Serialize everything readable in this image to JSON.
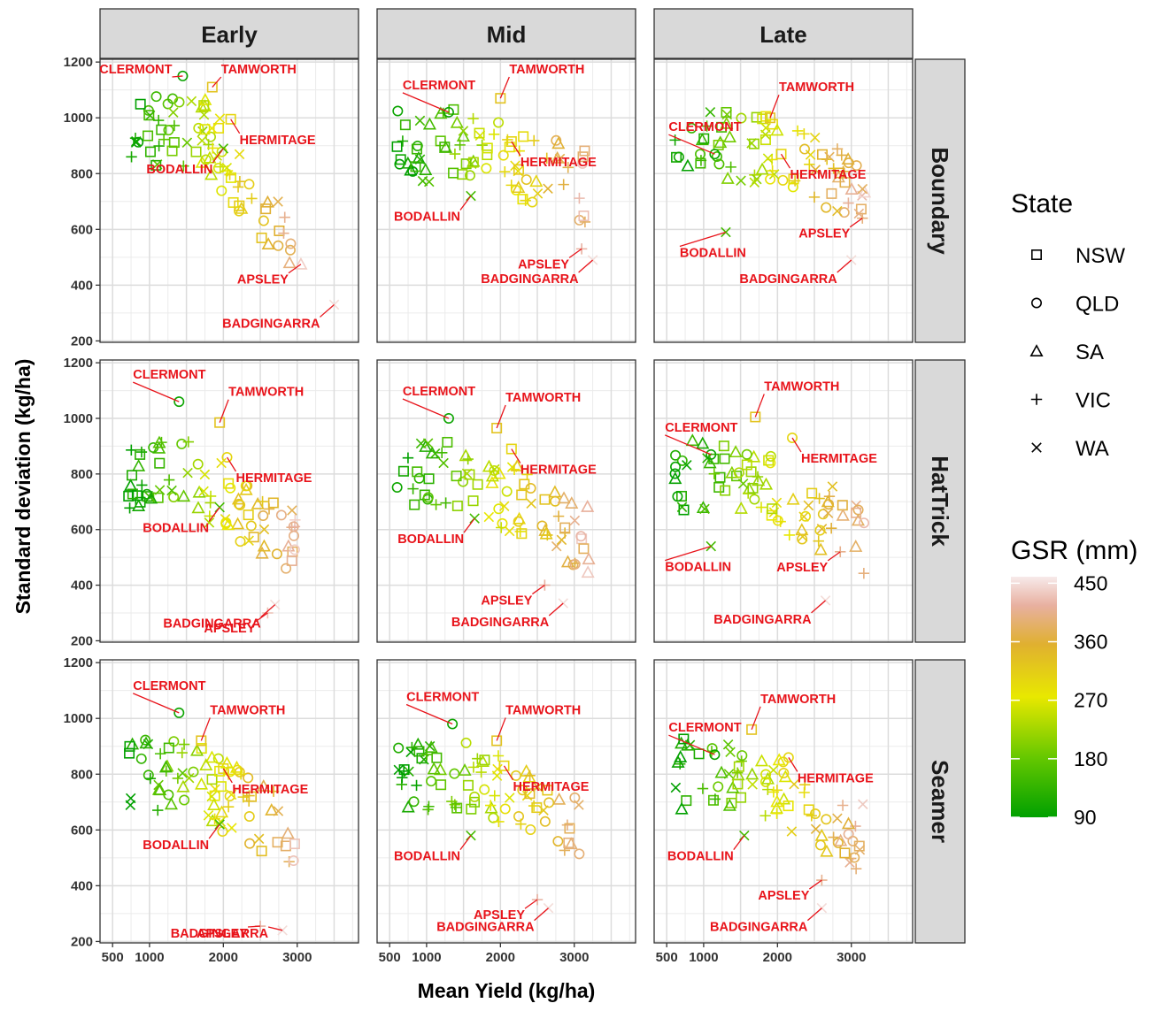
{
  "chart_data": {
    "type": "scatter",
    "xlabel": "Mean Yield (kg/ha)",
    "ylabel": "Standard deviation (kg/ha)",
    "xlim": [
      330,
      3830
    ],
    "ylim": [
      195,
      1210
    ],
    "x_ticks": [
      500,
      1000,
      2000,
      3000
    ],
    "y_ticks": [
      200,
      400,
      600,
      800,
      1000,
      1200
    ],
    "grid": true,
    "columns": [
      "Early",
      "Mid",
      "Late"
    ],
    "rows": [
      "Boundary",
      "HatTrick",
      "Seamer"
    ],
    "legend": {
      "shape_title": "State",
      "states": [
        {
          "name": "NSW",
          "shape": "square"
        },
        {
          "name": "QLD",
          "shape": "circle"
        },
        {
          "name": "SA",
          "shape": "triangle"
        },
        {
          "name": "VIC",
          "shape": "plus"
        },
        {
          "name": "WA",
          "shape": "cross"
        }
      ],
      "color_title": "GSR (mm)",
      "color_ticks": [
        450,
        360,
        270,
        180,
        90
      ],
      "color_range": [
        90,
        460
      ],
      "colors": [
        "#00a000",
        "#66c800",
        "#e8e800",
        "#e0b030",
        "#e8b0a0",
        "#f7eaea"
      ]
    },
    "panels": [
      {
        "row": "Boundary",
        "col": "Early",
        "sites": [
          {
            "name": "TAMWORTH",
            "x": 1850,
            "y": 1110,
            "gsr": 330,
            "shape": "square"
          },
          {
            "name": "CLERMONT",
            "x": 1450,
            "y": 1150,
            "gsr": 100,
            "shape": "circle"
          },
          {
            "name": "HERMITAGE",
            "x": 2100,
            "y": 995,
            "gsr": 300,
            "shape": "square"
          },
          {
            "name": "BODALLIN",
            "x": 2000,
            "y": 890,
            "gsr": 150,
            "shape": "cross"
          },
          {
            "name": "APSLEY",
            "x": 3050,
            "y": 475,
            "gsr": 440,
            "shape": "triangle"
          },
          {
            "name": "BADGINGARRA",
            "x": 3500,
            "y": 330,
            "gsr": 450,
            "shape": "cross"
          }
        ]
      },
      {
        "row": "Boundary",
        "col": "Mid",
        "sites": [
          {
            "name": "CLERMONT",
            "x": 1300,
            "y": 1020,
            "gsr": 100,
            "shape": "circle"
          },
          {
            "name": "TAMWORTH",
            "x": 2000,
            "y": 1070,
            "gsr": 330,
            "shape": "square"
          },
          {
            "name": "HERMITAGE",
            "x": 2150,
            "y": 915,
            "gsr": 300,
            "shape": "square"
          },
          {
            "name": "BODALLIN",
            "x": 1600,
            "y": 720,
            "gsr": 150,
            "shape": "cross"
          },
          {
            "name": "APSLEY",
            "x": 3100,
            "y": 530,
            "gsr": 420,
            "shape": "plus"
          },
          {
            "name": "BADGINGARRA",
            "x": 3250,
            "y": 490,
            "gsr": 450,
            "shape": "cross"
          }
        ]
      },
      {
        "row": "Boundary",
        "col": "Late",
        "sites": [
          {
            "name": "TAMWORTH",
            "x": 1900,
            "y": 1000,
            "gsr": 330,
            "shape": "square"
          },
          {
            "name": "HERMITAGE",
            "x": 2050,
            "y": 870,
            "gsr": 300,
            "shape": "square"
          },
          {
            "name": "CLERMONT",
            "x": 1150,
            "y": 870,
            "gsr": 100,
            "shape": "circle"
          },
          {
            "name": "BODALLIN",
            "x": 1300,
            "y": 590,
            "gsr": 150,
            "shape": "cross"
          },
          {
            "name": "APSLEY",
            "x": 3150,
            "y": 640,
            "gsr": 400,
            "shape": "plus"
          },
          {
            "name": "BADGINGARRA",
            "x": 3000,
            "y": 490,
            "gsr": 450,
            "shape": "cross"
          }
        ]
      },
      {
        "row": "HatTrick",
        "col": "Early",
        "sites": [
          {
            "name": "CLERMONT",
            "x": 1400,
            "y": 1060,
            "gsr": 100,
            "shape": "circle"
          },
          {
            "name": "TAMWORTH",
            "x": 1950,
            "y": 985,
            "gsr": 330,
            "shape": "square"
          },
          {
            "name": "HERMITAGE",
            "x": 2050,
            "y": 860,
            "gsr": 300,
            "shape": "circle"
          },
          {
            "name": "BODALLIN",
            "x": 1950,
            "y": 680,
            "gsr": 150,
            "shape": "cross"
          },
          {
            "name": "APSLEY",
            "x": 2600,
            "y": 300,
            "gsr": 430,
            "shape": "plus"
          },
          {
            "name": "BADGINGARRA",
            "x": 2700,
            "y": 330,
            "gsr": 450,
            "shape": "cross"
          }
        ]
      },
      {
        "row": "HatTrick",
        "col": "Mid",
        "sites": [
          {
            "name": "CLERMONT",
            "x": 1300,
            "y": 1000,
            "gsr": 100,
            "shape": "circle"
          },
          {
            "name": "TAMWORTH",
            "x": 1950,
            "y": 965,
            "gsr": 330,
            "shape": "square"
          },
          {
            "name": "HERMITAGE",
            "x": 2150,
            "y": 890,
            "gsr": 300,
            "shape": "square"
          },
          {
            "name": "BODALLIN",
            "x": 1650,
            "y": 640,
            "gsr": 150,
            "shape": "cross"
          },
          {
            "name": "APSLEY",
            "x": 2600,
            "y": 400,
            "gsr": 420,
            "shape": "plus"
          },
          {
            "name": "BADGINGARRA",
            "x": 2850,
            "y": 335,
            "gsr": 450,
            "shape": "cross"
          }
        ]
      },
      {
        "row": "HatTrick",
        "col": "Late",
        "sites": [
          {
            "name": "TAMWORTH",
            "x": 1700,
            "y": 1005,
            "gsr": 330,
            "shape": "square"
          },
          {
            "name": "HERMITAGE",
            "x": 2200,
            "y": 930,
            "gsr": 300,
            "shape": "circle"
          },
          {
            "name": "CLERMONT",
            "x": 1100,
            "y": 870,
            "gsr": 100,
            "shape": "circle"
          },
          {
            "name": "BODALLIN",
            "x": 1100,
            "y": 540,
            "gsr": 150,
            "shape": "cross"
          },
          {
            "name": "APSLEY",
            "x": 2850,
            "y": 520,
            "gsr": 410,
            "shape": "plus"
          },
          {
            "name": "BADGINGARRA",
            "x": 2650,
            "y": 345,
            "gsr": 450,
            "shape": "cross"
          }
        ]
      },
      {
        "row": "Seamer",
        "col": "Early",
        "sites": [
          {
            "name": "CLERMONT",
            "x": 1400,
            "y": 1020,
            "gsr": 100,
            "shape": "circle"
          },
          {
            "name": "TAMWORTH",
            "x": 1700,
            "y": 920,
            "gsr": 330,
            "shape": "square"
          },
          {
            "name": "HERMITAGE",
            "x": 2000,
            "y": 820,
            "gsr": 300,
            "shape": "square"
          },
          {
            "name": "BODALLIN",
            "x": 1950,
            "y": 620,
            "gsr": 150,
            "shape": "cross"
          },
          {
            "name": "BADGINGARRA",
            "x": 2800,
            "y": 240,
            "gsr": 450,
            "shape": "cross"
          },
          {
            "name": "APSLEY",
            "x": 2500,
            "y": 255,
            "gsr": 420,
            "shape": "plus"
          }
        ]
      },
      {
        "row": "Seamer",
        "col": "Mid",
        "sites": [
          {
            "name": "CLERMONT",
            "x": 1350,
            "y": 980,
            "gsr": 100,
            "shape": "circle"
          },
          {
            "name": "TAMWORTH",
            "x": 1950,
            "y": 920,
            "gsr": 330,
            "shape": "square"
          },
          {
            "name": "HERMITAGE",
            "x": 2050,
            "y": 830,
            "gsr": 300,
            "shape": "square"
          },
          {
            "name": "BODALLIN",
            "x": 1600,
            "y": 580,
            "gsr": 150,
            "shape": "cross"
          },
          {
            "name": "APSLEY",
            "x": 2500,
            "y": 350,
            "gsr": 420,
            "shape": "plus"
          },
          {
            "name": "BADGINGARRA",
            "x": 2650,
            "y": 320,
            "gsr": 450,
            "shape": "cross"
          }
        ]
      },
      {
        "row": "Seamer",
        "col": "Late",
        "sites": [
          {
            "name": "TAMWORTH",
            "x": 1650,
            "y": 960,
            "gsr": 330,
            "shape": "square"
          },
          {
            "name": "HERMITAGE",
            "x": 2150,
            "y": 860,
            "gsr": 300,
            "shape": "circle"
          },
          {
            "name": "CLERMONT",
            "x": 1150,
            "y": 870,
            "gsr": 100,
            "shape": "circle"
          },
          {
            "name": "BODALLIN",
            "x": 1550,
            "y": 580,
            "gsr": 150,
            "shape": "cross"
          },
          {
            "name": "APSLEY",
            "x": 2600,
            "y": 420,
            "gsr": 410,
            "shape": "plus"
          },
          {
            "name": "BADGINGARRA",
            "x": 2600,
            "y": 320,
            "gsr": 450,
            "shape": "cross"
          }
        ]
      }
    ]
  }
}
